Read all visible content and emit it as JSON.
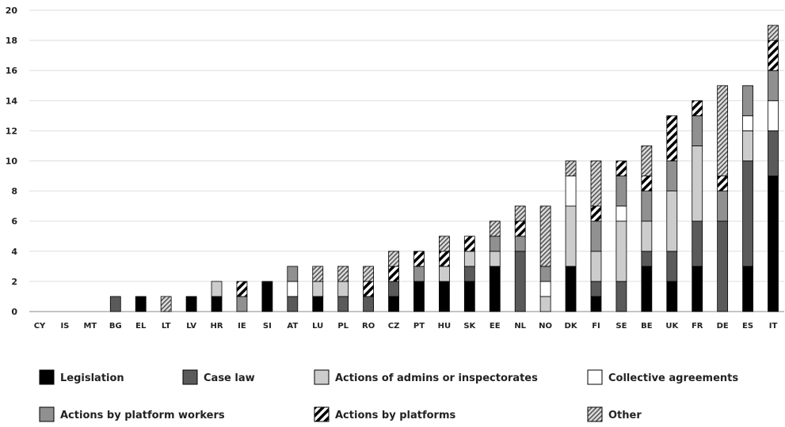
{
  "chart_data": {
    "type": "bar",
    "stacked": true,
    "title": "",
    "xlabel": "",
    "ylabel": "",
    "ylim": [
      0,
      20
    ],
    "yticks": [
      0,
      2,
      4,
      6,
      8,
      10,
      12,
      14,
      16,
      18,
      20
    ],
    "grid": "horizontal",
    "legend_position": "bottom",
    "categories": [
      "CY",
      "IS",
      "MT",
      "BG",
      "EL",
      "LT",
      "LV",
      "HR",
      "IE",
      "SI",
      "AT",
      "LU",
      "PL",
      "RO",
      "CZ",
      "PT",
      "HU",
      "SK",
      "EE",
      "NL",
      "NO",
      "DK",
      "FI",
      "SE",
      "BE",
      "UK",
      "FR",
      "DE",
      "ES",
      "IT"
    ],
    "series": [
      {
        "name": "Legislation",
        "color": "#000000",
        "pattern": "solid",
        "values": [
          0,
          0,
          0,
          0,
          1,
          0,
          1,
          1,
          0,
          2,
          0,
          1,
          0,
          0,
          1,
          2,
          2,
          2,
          3,
          0,
          0,
          3,
          1,
          0,
          3,
          2,
          3,
          0,
          3,
          9
        ]
      },
      {
        "name": "Case law",
        "color": "#5a5a5a",
        "pattern": "solid",
        "values": [
          0,
          0,
          0,
          1,
          0,
          0,
          0,
          0,
          0,
          0,
          1,
          0,
          1,
          1,
          1,
          0,
          0,
          1,
          0,
          4,
          0,
          0,
          1,
          2,
          1,
          2,
          3,
          6,
          7,
          3
        ]
      },
      {
        "name": "Actions of admins or inspectorates",
        "color": "#cccccc",
        "pattern": "solid",
        "values": [
          0,
          0,
          0,
          0,
          0,
          0,
          0,
          1,
          0,
          0,
          0,
          1,
          1,
          0,
          0,
          0,
          1,
          1,
          1,
          0,
          1,
          4,
          2,
          4,
          2,
          4,
          5,
          0,
          2,
          0
        ]
      },
      {
        "name": "Collective agreements",
        "color": "#ffffff",
        "pattern": "solid",
        "values": [
          0,
          0,
          0,
          0,
          0,
          0,
          0,
          0,
          0,
          0,
          1,
          0,
          0,
          0,
          0,
          0,
          0,
          0,
          0,
          0,
          1,
          2,
          0,
          1,
          0,
          0,
          0,
          0,
          1,
          2
        ]
      },
      {
        "name": "Actions by platform workers",
        "color": "#909090",
        "pattern": "solid",
        "values": [
          0,
          0,
          0,
          0,
          0,
          0,
          0,
          0,
          1,
          0,
          1,
          0,
          0,
          0,
          0,
          1,
          0,
          0,
          1,
          1,
          1,
          0,
          2,
          2,
          2,
          2,
          2,
          2,
          2,
          2
        ]
      },
      {
        "name": "Actions by platforms",
        "color": "#000000",
        "pattern": "thick-stripes",
        "values": [
          0,
          0,
          0,
          0,
          0,
          0,
          0,
          0,
          1,
          0,
          0,
          0,
          0,
          1,
          1,
          1,
          1,
          1,
          0,
          1,
          0,
          0,
          1,
          1,
          1,
          3,
          1,
          1,
          0,
          2
        ]
      },
      {
        "name": "Other",
        "color": "#555555",
        "pattern": "thin-stripes",
        "values": [
          0,
          0,
          0,
          0,
          0,
          1,
          0,
          0,
          0,
          0,
          0,
          1,
          1,
          1,
          1,
          0,
          1,
          0,
          1,
          1,
          4,
          1,
          3,
          0,
          2,
          0,
          0,
          6,
          0,
          1
        ]
      }
    ]
  }
}
